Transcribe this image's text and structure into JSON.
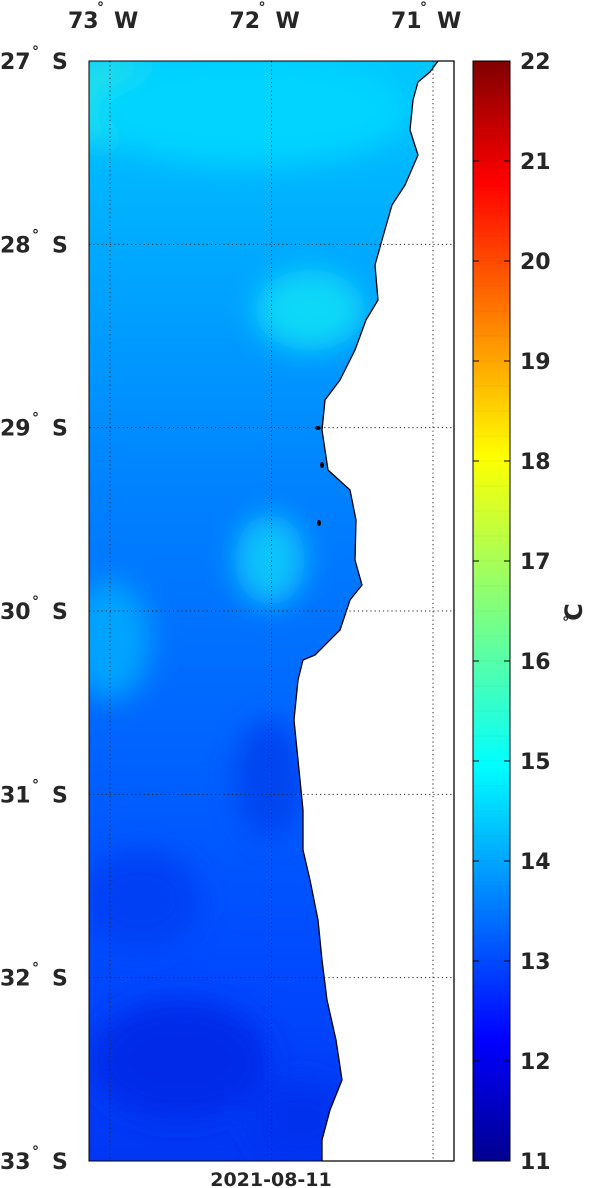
{
  "map": {
    "date_label": "2021-08-11",
    "lon_labels": [
      {
        "deg": "73",
        "sym": "°",
        "hemi": "W",
        "lon": -73
      },
      {
        "deg": "72",
        "sym": "°",
        "hemi": "W",
        "lon": -72
      },
      {
        "deg": "71",
        "sym": "°",
        "hemi": "W",
        "lon": -71
      }
    ],
    "lat_labels": [
      {
        "deg": "27",
        "sym": "°",
        "hemi": "S",
        "lat": -27
      },
      {
        "deg": "28",
        "sym": "°",
        "hemi": "S",
        "lat": -28
      },
      {
        "deg": "29",
        "sym": "°",
        "hemi": "S",
        "lat": -29
      },
      {
        "deg": "30",
        "sym": "°",
        "hemi": "S",
        "lat": -30
      },
      {
        "deg": "31",
        "sym": "°",
        "hemi": "S",
        "lat": -31
      },
      {
        "deg": "32",
        "sym": "°",
        "hemi": "S",
        "lat": -32
      },
      {
        "deg": "33",
        "sym": "°",
        "hemi": "S",
        "lat": -33
      }
    ],
    "land_color": "#ffffff",
    "coast_color": "#000000",
    "gridline_style": "dotted"
  },
  "colorbar": {
    "min": 11,
    "max": 22,
    "ticks": [
      "11",
      "12",
      "13",
      "14",
      "15",
      "16",
      "17",
      "18",
      "19",
      "20",
      "21",
      "22"
    ],
    "unit_sym": "°",
    "unit_letter": "C",
    "colormap": "jet"
  }
}
